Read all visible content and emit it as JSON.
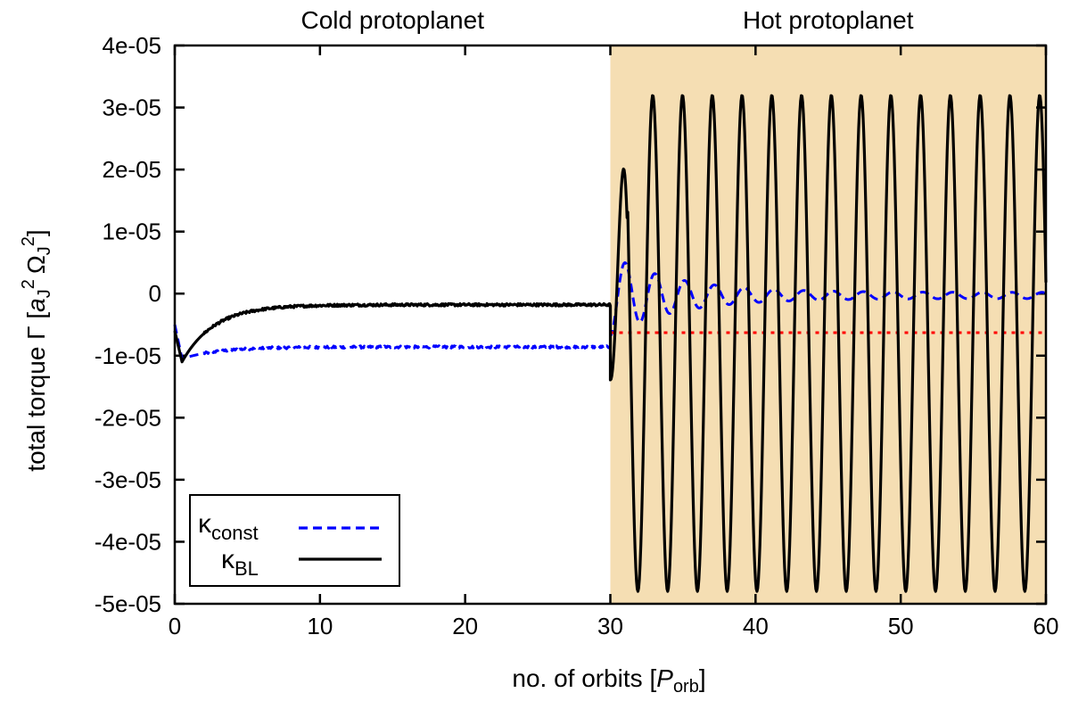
{
  "chart_data": {
    "type": "line",
    "title": "",
    "xlabel": {
      "prefix": "no. of orbits [",
      "symbol": "P",
      "sub": "orb",
      "suffix": "]"
    },
    "ylabel": {
      "prefix": "total torque Γ [",
      "a": "a",
      "a_sub": "J",
      "a_sup": "2",
      "omega": "Ω",
      "omega_sub": "J",
      "omega_sup": "2",
      "suffix": "]"
    },
    "xlim": [
      0,
      60
    ],
    "ylim": [
      -5e-05,
      4e-05
    ],
    "x_ticks": [
      0,
      10,
      20,
      30,
      40,
      50,
      60
    ],
    "x_tick_labels": [
      "0",
      "10",
      "20",
      "30",
      "40",
      "50",
      "60"
    ],
    "y_ticks": [
      4e-05,
      3e-05,
      2e-05,
      1e-05,
      0,
      -1e-05,
      -2e-05,
      -3e-05,
      -4e-05,
      -5e-05
    ],
    "y_tick_labels": [
      "4e-05",
      "3e-05",
      "2e-05",
      "1e-05",
      "0",
      "-1e-05",
      "-2e-05",
      "-3e-05",
      "-4e-05",
      "-5e-05"
    ],
    "regions": [
      {
        "label": "Cold protoplanet",
        "x_start": 0,
        "x_end": 30,
        "color": "#ffffff"
      },
      {
        "label": "Hot protoplanet",
        "x_start": 30,
        "x_end": 60,
        "color": "#f5deb3"
      }
    ],
    "legend": {
      "position": "bottom-left",
      "entries": [
        {
          "symbol": "κ",
          "sub": "const",
          "color": "#0000ff",
          "dash": "dashed"
        },
        {
          "symbol": "κ",
          "sub": "BL",
          "color": "#000000",
          "dash": "solid"
        }
      ]
    },
    "series": [
      {
        "name": "κ_const",
        "color": "#0000ff",
        "dash": "dashed",
        "segments": [
          {
            "kind": "approach",
            "x_start": 0,
            "x_end": 30,
            "y_start": -5e-06,
            "y_min": -1.05e-05,
            "x_min": 0.5,
            "y_end": -8.6e-06,
            "tau": 2.5
          },
          {
            "kind": "oscillation",
            "x_start": 30,
            "x_end": 60,
            "period": 2.05,
            "center": -3e-07,
            "amp_start": 6.5e-06,
            "amp_end": 5e-07,
            "tau": 4.5,
            "phase_at_start": -1.57
          }
        ]
      },
      {
        "name": "κ_BL",
        "color": "#000000",
        "dash": "solid",
        "segments": [
          {
            "kind": "approach",
            "x_start": 0,
            "x_end": 30,
            "y_start": -6e-06,
            "y_min": -1.1e-05,
            "x_min": 0.5,
            "y_end": -1.8e-06,
            "tau": 2.2
          },
          {
            "kind": "oscillation",
            "x_start": 30,
            "x_end": 60,
            "period": 2.05,
            "center": -8.5e-06,
            "amp_start": 4e-05,
            "amp_end": 4e-05,
            "tau": 1000,
            "phase_at_start": -1.1
          }
        ]
      },
      {
        "name": "reference",
        "color": "#ff0000",
        "dash": "dotted",
        "segments": [
          {
            "kind": "constant",
            "x_start": 30,
            "x_end": 60,
            "y": -6.3e-06
          }
        ]
      }
    ]
  }
}
